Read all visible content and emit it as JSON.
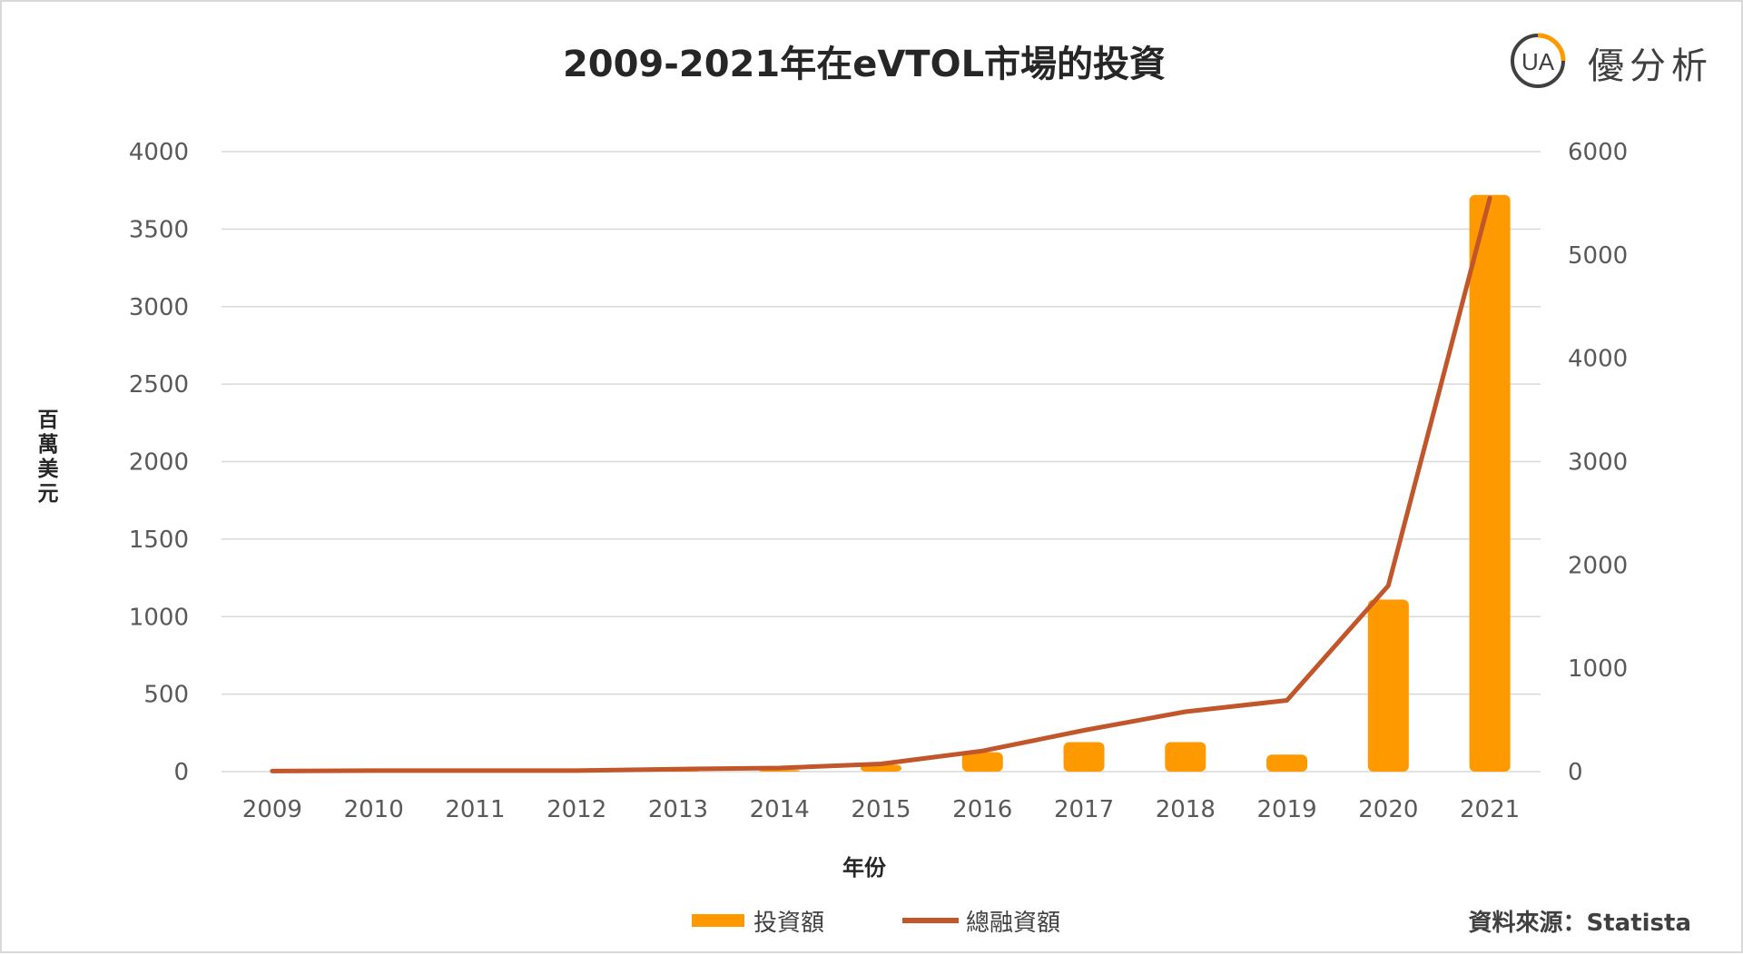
{
  "title": "2009-2021年在eVTOL市場的投資",
  "logo": {
    "mark": "UA",
    "text": "優分析"
  },
  "source": "資料來源：Statista",
  "colors": {
    "bar": "#FF9900",
    "line": "#C0562A",
    "grid": "#D9D9D9",
    "axis_text": "#595959"
  },
  "chart_data": {
    "type": "bar",
    "categories": [
      "2009",
      "2010",
      "2011",
      "2012",
      "2013",
      "2014",
      "2015",
      "2016",
      "2017",
      "2018",
      "2019",
      "2020",
      "2021"
    ],
    "xlabel": "年份",
    "ylabel": "百萬美元",
    "ylim": [
      0,
      4000
    ],
    "y2lim": [
      0,
      6000
    ],
    "yticks": [
      0,
      500,
      1000,
      1500,
      2000,
      2500,
      3000,
      3500,
      4000
    ],
    "y2ticks": [
      0,
      1000,
      2000,
      3000,
      4000,
      5000,
      6000
    ],
    "grid": true,
    "legend_position": "bottom",
    "series": [
      {
        "name": "投資額",
        "type": "bar",
        "axis": "left",
        "values": [
          0,
          0,
          0,
          0,
          5,
          10,
          45,
          125,
          190,
          190,
          110,
          1110,
          3720
        ]
      },
      {
        "name": "總融資額",
        "type": "line",
        "axis": "right",
        "values": [
          5,
          10,
          10,
          10,
          25,
          35,
          75,
          200,
          400,
          580,
          690,
          1800,
          5550
        ]
      }
    ]
  }
}
